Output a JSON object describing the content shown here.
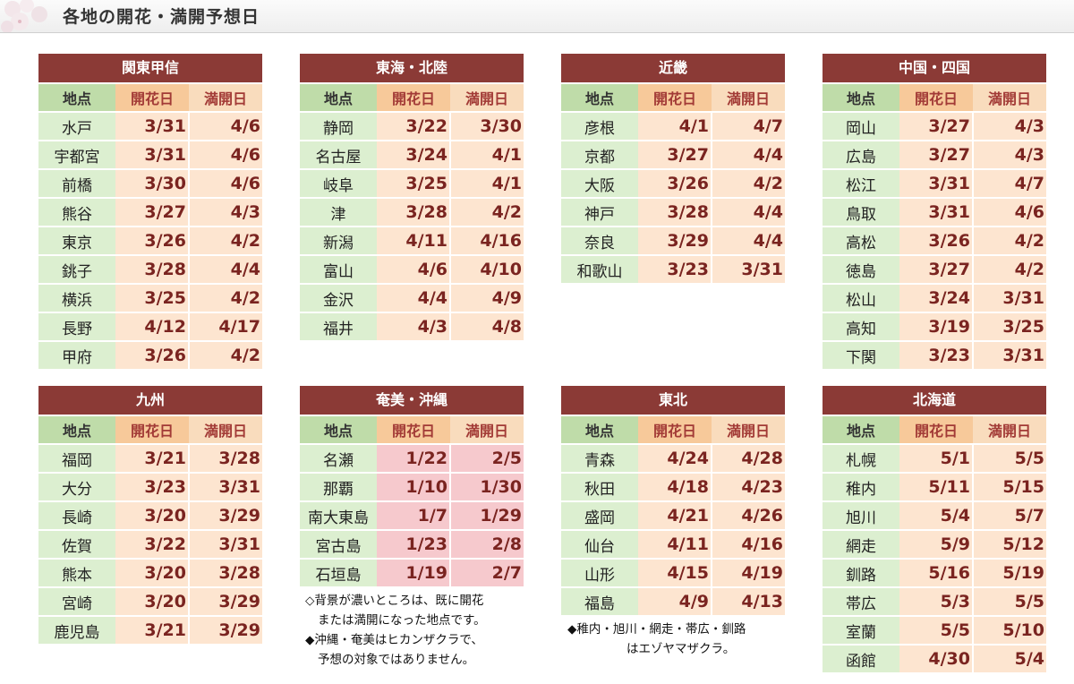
{
  "page_title": "各地の開花・満開予想日",
  "headers": {
    "place": "地点",
    "bloom": "開花日",
    "full": "満開日"
  },
  "regions": [
    {
      "name": "関東甲信",
      "rows": [
        [
          "水戸",
          "3/31",
          "4/6"
        ],
        [
          "宇都宮",
          "3/31",
          "4/6"
        ],
        [
          "前橋",
          "3/30",
          "4/6"
        ],
        [
          "熊谷",
          "3/27",
          "4/3"
        ],
        [
          "東京",
          "3/26",
          "4/2"
        ],
        [
          "銚子",
          "3/28",
          "4/4"
        ],
        [
          "横浜",
          "3/25",
          "4/2"
        ],
        [
          "長野",
          "4/12",
          "4/17"
        ],
        [
          "甲府",
          "3/26",
          "4/2"
        ]
      ]
    },
    {
      "name": "東海・北陸",
      "rows": [
        [
          "静岡",
          "3/22",
          "3/30"
        ],
        [
          "名古屋",
          "3/24",
          "4/1"
        ],
        [
          "岐阜",
          "3/25",
          "4/1"
        ],
        [
          "津",
          "3/28",
          "4/2"
        ],
        [
          "新潟",
          "4/11",
          "4/16"
        ],
        [
          "富山",
          "4/6",
          "4/10"
        ],
        [
          "金沢",
          "4/4",
          "4/9"
        ],
        [
          "福井",
          "4/3",
          "4/8"
        ]
      ]
    },
    {
      "name": "近畿",
      "rows": [
        [
          "彦根",
          "4/1",
          "4/7"
        ],
        [
          "京都",
          "3/27",
          "4/4"
        ],
        [
          "大阪",
          "3/26",
          "4/2"
        ],
        [
          "神戸",
          "3/28",
          "4/4"
        ],
        [
          "奈良",
          "3/29",
          "4/4"
        ],
        [
          "和歌山",
          "3/23",
          "3/31"
        ]
      ]
    },
    {
      "name": "中国・四国",
      "rows": [
        [
          "岡山",
          "3/27",
          "4/3"
        ],
        [
          "広島",
          "3/27",
          "4/3"
        ],
        [
          "松江",
          "3/31",
          "4/7"
        ],
        [
          "鳥取",
          "3/31",
          "4/6"
        ],
        [
          "高松",
          "3/26",
          "4/2"
        ],
        [
          "徳島",
          "3/27",
          "4/2"
        ],
        [
          "松山",
          "3/24",
          "3/31"
        ],
        [
          "高知",
          "3/19",
          "3/25"
        ],
        [
          "下関",
          "3/23",
          "3/31"
        ]
      ]
    },
    {
      "name": "九州",
      "rows": [
        [
          "福岡",
          "3/21",
          "3/28"
        ],
        [
          "大分",
          "3/23",
          "3/31"
        ],
        [
          "長崎",
          "3/20",
          "3/29"
        ],
        [
          "佐賀",
          "3/22",
          "3/31"
        ],
        [
          "熊本",
          "3/20",
          "3/28"
        ],
        [
          "宮崎",
          "3/20",
          "3/29"
        ],
        [
          "鹿児島",
          "3/21",
          "3/29"
        ]
      ]
    },
    {
      "name": "奄美・沖縄",
      "done": true,
      "rows": [
        [
          "名瀬",
          "1/22",
          "2/5"
        ],
        [
          "那覇",
          "1/10",
          "1/30"
        ],
        [
          "南大東島",
          "1/7",
          "1/29"
        ],
        [
          "宮古島",
          "1/23",
          "2/8"
        ],
        [
          "石垣島",
          "1/19",
          "2/7"
        ]
      ]
    },
    {
      "name": "東北",
      "rows": [
        [
          "青森",
          "4/24",
          "4/28"
        ],
        [
          "秋田",
          "4/18",
          "4/23"
        ],
        [
          "盛岡",
          "4/21",
          "4/26"
        ],
        [
          "仙台",
          "4/11",
          "4/16"
        ],
        [
          "山形",
          "4/15",
          "4/19"
        ],
        [
          "福島",
          "4/9",
          "4/13"
        ]
      ]
    },
    {
      "name": "北海道",
      "rows": [
        [
          "札幌",
          "5/1",
          "5/5"
        ],
        [
          "稚内",
          "5/11",
          "5/15"
        ],
        [
          "旭川",
          "5/4",
          "5/7"
        ],
        [
          "網走",
          "5/9",
          "5/12"
        ],
        [
          "釧路",
          "5/16",
          "5/19"
        ],
        [
          "帯広",
          "5/3",
          "5/5"
        ],
        [
          "室蘭",
          "5/5",
          "5/10"
        ],
        [
          "函館",
          "4/30",
          "5/4"
        ]
      ]
    }
  ],
  "notes": {
    "okinawa": [
      "◇背景が濃いところは、既に開花",
      "または満開になった地点です。",
      "◆沖縄・奄美はヒカンザクラで、",
      "予想の対象ではありません。"
    ],
    "tohoku": [
      "◆稚内・旭川・網走・帯広・釧路",
      "はエゾヤマザクラ。"
    ]
  },
  "colors": {
    "header_bg": "#8b3a36",
    "place_bg": "#dcefd0",
    "date_bg": "#fde5d0",
    "done_bg": "#f6c9cd"
  }
}
